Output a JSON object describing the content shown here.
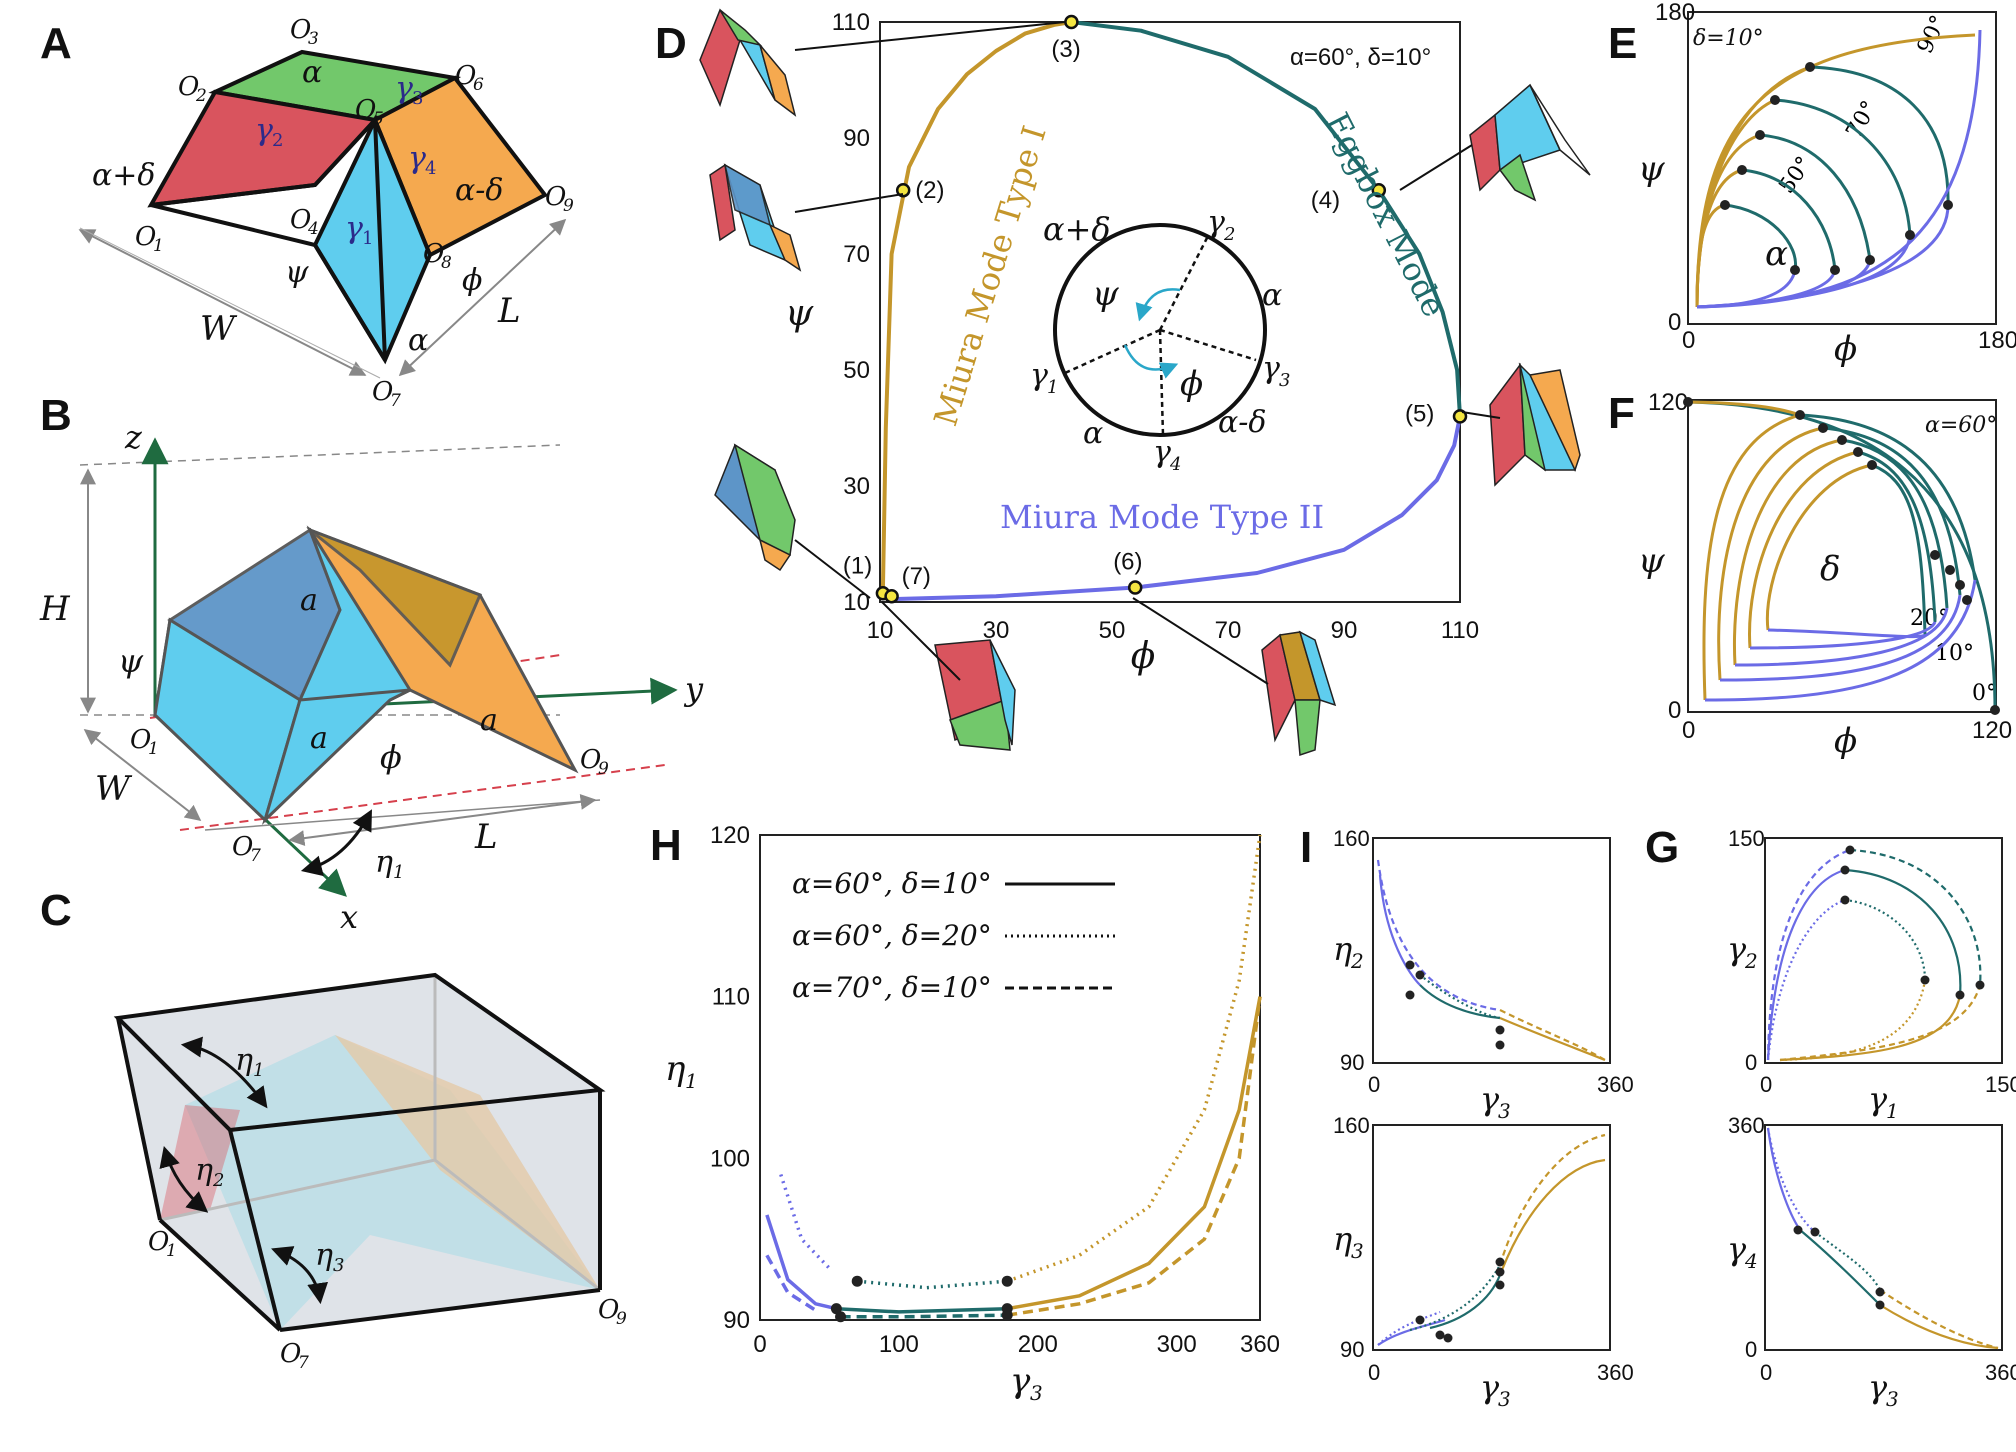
{
  "panels": {
    "A": "A",
    "B": "B",
    "C": "C",
    "D": "D",
    "E": "E",
    "F": "F",
    "G": "G",
    "H": "H",
    "I": "I"
  },
  "colors": {
    "miura_I": "#c4962b",
    "eggbox": "#1f6b6b",
    "miura_II": "#6b6be6",
    "face_red": "#d9545e",
    "face_blue": "#5fcdee",
    "face_green": "#72c86b",
    "face_orange": "#f5a94f",
    "dot_fill": "#f4e541"
  },
  "panelA": {
    "vertices": [
      "O",
      "O",
      "O",
      "O",
      "O",
      "O",
      "O",
      "O",
      "O"
    ],
    "vertex_subs": [
      "1",
      "2",
      "3",
      "4",
      "5",
      "6",
      "7",
      "8",
      "9"
    ],
    "angles": [
      "α+δ",
      "α",
      "α-δ",
      "α"
    ],
    "gammas": [
      "γ",
      "γ",
      "γ",
      "γ"
    ],
    "gamma_subs": [
      "2",
      "3",
      "4",
      "1"
    ],
    "psi": "ψ",
    "phi": "ϕ",
    "W": "W",
    "L": "L"
  },
  "panelB": {
    "axes": [
      "z",
      "y",
      "x"
    ],
    "H": "H",
    "W": "W",
    "L": "L",
    "psi": "ψ",
    "phi": "ϕ",
    "a": "a",
    "eta": "η",
    "eta_sub": "1",
    "O1": "O",
    "O1_sub": "1",
    "O7": "O",
    "O7_sub": "7",
    "O9": "O",
    "O9_sub": "9"
  },
  "panelC": {
    "eta": "η",
    "eta_subs": [
      "1",
      "2",
      "3"
    ],
    "O1": "O",
    "O1_sub": "1",
    "O7": "O",
    "O7_sub": "7",
    "O9": "O",
    "O9_sub": "9"
  },
  "panelD": {
    "annotation": "α=60°, δ=10°",
    "x_ticks": [
      "10",
      "30",
      "50",
      "70",
      "90",
      "110"
    ],
    "y_ticks": [
      "10",
      "30",
      "50",
      "70",
      "90",
      "110"
    ],
    "xlabel": "ϕ",
    "ylabel": "ψ",
    "mode_I": "Miura Mode Type I",
    "eggbox": "Eggbox Mode",
    "mode_II": "Miura Mode Type II",
    "points": [
      "(1)",
      "(2)",
      "(3)",
      "(4)",
      "(5)",
      "(6)",
      "(7)"
    ],
    "circle_labels": {
      "top_left": "α+δ",
      "top_right": "γ",
      "right": "α",
      "right2": "γ",
      "bottom_right": "α-δ",
      "bottom": "γ",
      "bottom_left": "α",
      "left": "γ",
      "psi": "ψ",
      "phi": "ϕ"
    },
    "circle_subs": {
      "g2": "2",
      "g3": "3",
      "g4": "4",
      "g1": "1"
    }
  },
  "panelE": {
    "annotation": "δ=10°",
    "x_ticks": [
      "0",
      "180"
    ],
    "y_ticks": [
      "0",
      "180"
    ],
    "xlabel": "ϕ",
    "ylabel": "ψ",
    "alpha": "α",
    "angles": [
      "90°",
      "70°",
      "50°"
    ]
  },
  "panelF": {
    "annotation": "α=60°",
    "x_ticks": [
      "0",
      "120"
    ],
    "y_ticks": [
      "0",
      "120"
    ],
    "xlabel": "ϕ",
    "ylabel": "ψ",
    "delta": "δ",
    "angles": [
      "20°",
      "10°",
      "0°"
    ]
  },
  "panelH": {
    "x_ticks": [
      "0",
      "100",
      "200",
      "300",
      "360"
    ],
    "y_ticks": [
      "90",
      "100",
      "110",
      "120"
    ],
    "xlabel": "γ",
    "xlabel_sub": "3",
    "ylabel": "η",
    "ylabel_sub": "1",
    "legend": [
      "α=60°, δ=10°",
      "α=60°, δ=20°",
      "α=70°, δ=10°"
    ]
  },
  "panelI": {
    "top": {
      "y_ticks": [
        "90",
        "160"
      ],
      "x_ticks": [
        "0",
        "360"
      ],
      "ylabel": "η",
      "ylabel_sub": "2",
      "xlabel": "γ",
      "xlabel_sub": "3"
    },
    "bottom": {
      "y_ticks": [
        "90",
        "160"
      ],
      "x_ticks": [
        "0",
        "360"
      ],
      "ylabel": "η",
      "ylabel_sub": "3",
      "xlabel": "γ",
      "xlabel_sub": "3"
    }
  },
  "panelG": {
    "top": {
      "y_ticks": [
        "0",
        "150"
      ],
      "x_ticks": [
        "0",
        "150"
      ],
      "ylabel": "γ",
      "ylabel_sub": "2",
      "xlabel": "γ",
      "xlabel_sub": "1"
    },
    "bottom": {
      "y_ticks": [
        "0",
        "360"
      ],
      "x_ticks": [
        "0",
        "360"
      ],
      "ylabel": "γ",
      "ylabel_sub": "4",
      "xlabel": "γ",
      "xlabel_sub": "3"
    }
  },
  "chart_data": [
    {
      "type": "line",
      "panel": "D",
      "xlabel": "ϕ",
      "ylabel": "ψ",
      "xlim": [
        10,
        110
      ],
      "ylim": [
        10,
        110
      ],
      "series": [
        {
          "name": "Miura Mode Type I",
          "color": "#c4962b",
          "x": [
            10.5,
            11,
            12,
            15,
            20,
            25,
            30,
            35,
            40,
            43
          ],
          "y": [
            12,
            40,
            70,
            85,
            95,
            101,
            105,
            108,
            109.5,
            110
          ]
        },
        {
          "name": "Eggbox Mode",
          "color": "#1f6b6b",
          "x": [
            43,
            55,
            70,
            85,
            96,
            103,
            107,
            109.5,
            110
          ],
          "y": [
            110,
            108.5,
            104,
            95,
            81,
            70,
            60,
            50,
            42
          ]
        },
        {
          "name": "Miura Mode Type II",
          "color": "#6b6be6",
          "x": [
            12,
            30,
            54,
            75,
            90,
            100,
            106,
            109,
            110
          ],
          "y": [
            10.5,
            11,
            12.5,
            15,
            19,
            25,
            31,
            37,
            42
          ]
        }
      ],
      "points": [
        {
          "label": "(1)",
          "x": 10.5,
          "y": 11.5
        },
        {
          "label": "(2)",
          "x": 14,
          "y": 81
        },
        {
          "label": "(3)",
          "x": 43,
          "y": 110
        },
        {
          "label": "(4)",
          "x": 96,
          "y": 81
        },
        {
          "label": "(5)",
          "x": 110,
          "y": 42
        },
        {
          "label": "(6)",
          "x": 54,
          "y": 12.5
        },
        {
          "label": "(7)",
          "x": 12,
          "y": 11
        }
      ]
    },
    {
      "type": "line",
      "panel": "H",
      "xlabel": "γ3",
      "ylabel": "η1",
      "xlim": [
        0,
        360
      ],
      "ylim": [
        90,
        120
      ],
      "series": [
        {
          "name": "α=60°, δ=10°",
          "style": "solid",
          "x": [
            5,
            20,
            40,
            55,
            100,
            178,
            230,
            280,
            320,
            345,
            360
          ],
          "y": [
            96.5,
            92.5,
            91,
            90.7,
            90.5,
            90.7,
            91.5,
            93.5,
            97,
            103,
            110
          ]
        },
        {
          "name": "α=60°, δ=20°",
          "style": "dotted",
          "x": [
            15,
            30,
            50,
            70,
            120,
            178,
            230,
            280,
            320,
            345,
            360
          ],
          "y": [
            99,
            95,
            93.2,
            92.4,
            92,
            92.4,
            94,
            97,
            103,
            111,
            120
          ]
        },
        {
          "name": "α=70°, δ=10°",
          "style": "dashed",
          "x": [
            5,
            20,
            40,
            58,
            100,
            178,
            230,
            280,
            320,
            345,
            360
          ],
          "y": [
            94,
            91.7,
            90.6,
            90.2,
            90.2,
            90.3,
            91,
            92.3,
            95,
            100,
            110
          ]
        }
      ]
    }
  ]
}
